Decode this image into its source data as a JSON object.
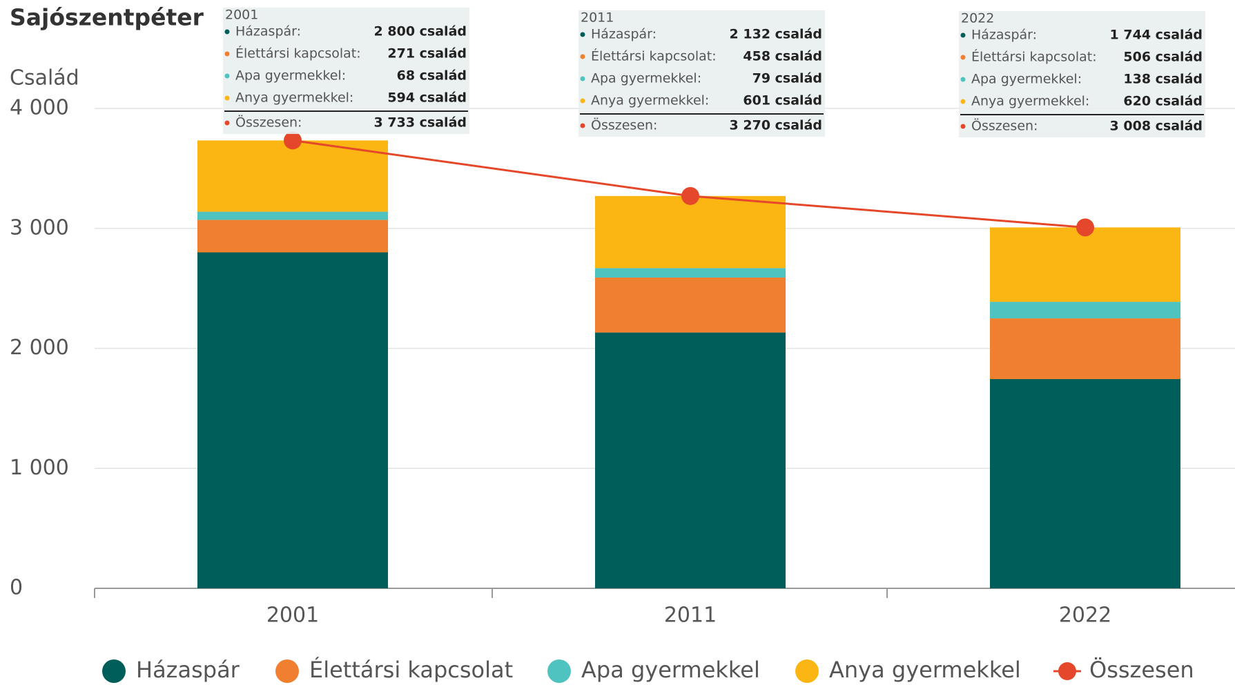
{
  "chart_data": {
    "type": "bar",
    "stacked": true,
    "title": "Sajószentpéter",
    "y_label": "Család",
    "categories": [
      "2001",
      "2011",
      "2022"
    ],
    "series": [
      {
        "name": "Házaspár",
        "tooltip_label": "Házaspár:",
        "color": "#005e5a",
        "values": [
          2800,
          2132,
          1744
        ],
        "value_labels": [
          "2 800 család",
          "2 132 család",
          "1 744 család"
        ]
      },
      {
        "name": "Élettársi kapcsolat",
        "tooltip_label": "Élettársi kapcsolat:",
        "color": "#f08030",
        "values": [
          271,
          458,
          506
        ],
        "value_labels": [
          "271 család",
          "458 család",
          "506 család"
        ]
      },
      {
        "name": "Apa gyermekkel",
        "tooltip_label": "Apa gyermekkel:",
        "color": "#4fc3c0",
        "values": [
          68,
          79,
          138
        ],
        "value_labels": [
          "68 család",
          "79 család",
          "138 család"
        ]
      },
      {
        "name": "Anya gyermekkel",
        "tooltip_label": "Anya gyermekkel:",
        "color": "#fbb614",
        "values": [
          594,
          601,
          620
        ],
        "value_labels": [
          "594 család",
          "601 család",
          "620 család"
        ]
      },
      {
        "name": "Összesen",
        "tooltip_label": "Összesen:",
        "type": "line",
        "color": "#e5472a",
        "values": [
          3733,
          3270,
          3008
        ],
        "value_labels": [
          "3 733 család",
          "3 270 család",
          "3 008 család"
        ]
      }
    ],
    "ylim": [
      0,
      4000
    ],
    "yticks": [
      0,
      {
        "value": 1000,
        "label": "1 000"
      },
      {
        "value": 2000,
        "label": "2 000"
      },
      {
        "value": 3000,
        "label": "3 000"
      },
      {
        "value": 4000,
        "label": "4 000"
      }
    ],
    "grid": true,
    "legend": "bottom"
  }
}
